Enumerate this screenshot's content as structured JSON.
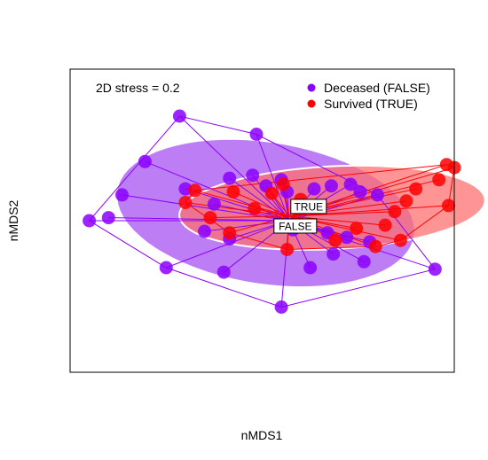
{
  "chart_data": {
    "type": "scatter",
    "title": "",
    "xlabel": "nMDS1",
    "ylabel": "nMDS2",
    "annotation": "2D stress =  0.2",
    "xlim": [
      -1.0,
      1.0
    ],
    "ylim": [
      -1.0,
      1.0
    ],
    "grid": false,
    "legend_position": "top-right",
    "series": [
      {
        "name": "Deceased (FALSE)",
        "color": "#8B00FF",
        "ellipse_color": "#B266F2",
        "centroid_label": "FALSE",
        "centroid": [
          0.14,
          0.0
        ],
        "points": [
          [
            -0.43,
            0.69
          ],
          [
            -0.03,
            0.57
          ],
          [
            -0.9,
            0.0
          ],
          [
            -0.8,
            0.02
          ],
          [
            0.1,
            -0.57
          ],
          [
            0.9,
            -0.32
          ],
          [
            -0.61,
            0.39
          ],
          [
            -0.17,
            0.28
          ],
          [
            -0.05,
            0.3
          ],
          [
            0.02,
            0.23
          ],
          [
            0.1,
            0.27
          ],
          [
            -0.4,
            0.21
          ],
          [
            -0.25,
            0.11
          ],
          [
            0.13,
            0.19
          ],
          [
            0.27,
            0.21
          ],
          [
            0.36,
            0.23
          ],
          [
            0.46,
            0.24
          ],
          [
            0.51,
            0.19
          ],
          [
            0.6,
            0.17
          ],
          [
            -0.73,
            0.17
          ],
          [
            -0.3,
            -0.07
          ],
          [
            -0.17,
            -0.12
          ],
          [
            0.16,
            -0.06
          ],
          [
            0.34,
            -0.08
          ],
          [
            0.44,
            -0.11
          ],
          [
            0.56,
            -0.14
          ],
          [
            -0.5,
            -0.31
          ],
          [
            -0.2,
            -0.34
          ],
          [
            0.25,
            -0.31
          ],
          [
            0.37,
            -0.22
          ],
          [
            0.53,
            -0.27
          ]
        ]
      },
      {
        "name": "Survived (TRUE)",
        "color": "#FF0000",
        "ellipse_color": "#FF7070",
        "centroid_label": "TRUE",
        "centroid": [
          0.14,
          0.03
        ],
        "points": [
          [
            0.96,
            0.37
          ],
          [
            1.0,
            0.35
          ],
          [
            0.92,
            0.27
          ],
          [
            0.8,
            0.21
          ],
          [
            0.75,
            0.13
          ],
          [
            0.69,
            0.06
          ],
          [
            0.97,
            0.1
          ],
          [
            0.64,
            -0.03
          ],
          [
            0.59,
            -0.17
          ],
          [
            0.72,
            -0.13
          ],
          [
            0.49,
            -0.05
          ],
          [
            0.38,
            -0.13
          ],
          [
            0.11,
            0.24
          ],
          [
            0.05,
            0.18
          ],
          [
            -0.15,
            0.19
          ],
          [
            -0.35,
            0.2
          ],
          [
            -0.4,
            0.12
          ],
          [
            -0.27,
            0.02
          ],
          [
            -0.04,
            0.08
          ],
          [
            0.2,
            0.14
          ],
          [
            0.13,
            -0.19
          ],
          [
            -0.17,
            -0.08
          ]
        ]
      }
    ]
  }
}
